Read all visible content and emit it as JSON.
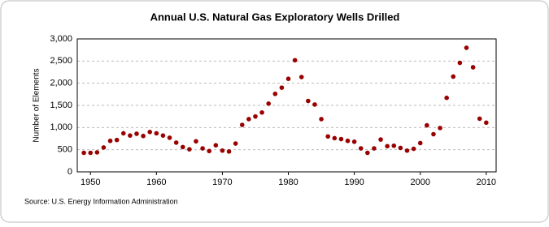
{
  "chart_data": {
    "type": "scatter",
    "title": "Annual U.S. Natural Gas Exploratory Wells Drilled",
    "y_label": "Number of Elements",
    "source": "Source: U.S. Energy Information Administration",
    "series": [
      {
        "name": "Exploratory Wells Drilled",
        "color": "#990000",
        "x": [
          1949,
          1950,
          1951,
          1952,
          1953,
          1954,
          1955,
          1956,
          1957,
          1958,
          1959,
          1960,
          1961,
          1962,
          1963,
          1964,
          1965,
          1966,
          1967,
          1968,
          1969,
          1970,
          1971,
          1972,
          1973,
          1974,
          1975,
          1976,
          1977,
          1978,
          1979,
          1980,
          1981,
          1982,
          1983,
          1984,
          1985,
          1986,
          1987,
          1988,
          1989,
          1990,
          1991,
          1992,
          1993,
          1994,
          1995,
          1996,
          1997,
          1998,
          1999,
          2000,
          2001,
          2002,
          2003,
          2004,
          2005,
          2006,
          2007,
          2008,
          2009,
          2010
        ],
        "values": [
          430,
          430,
          440,
          550,
          700,
          720,
          870,
          820,
          860,
          810,
          900,
          870,
          820,
          770,
          660,
          560,
          510,
          690,
          530,
          470,
          600,
          480,
          460,
          640,
          1060,
          1190,
          1250,
          1340,
          1540,
          1760,
          1900,
          2100,
          2520,
          2140,
          1600,
          1520,
          1190,
          800,
          760,
          740,
          700,
          680,
          530,
          430,
          530,
          730,
          580,
          590,
          540,
          480,
          520,
          650,
          1050,
          850,
          990,
          1670,
          2150,
          2460,
          2800,
          2360,
          1200,
          1110
        ]
      }
    ],
    "xlim": [
      1948,
      2011.5
    ],
    "xticks": [
      1950,
      1960,
      1970,
      1980,
      1990,
      2000,
      2010
    ],
    "ylim": [
      0,
      3000
    ],
    "yticks": [
      0,
      500,
      {
        "value": 1000,
        "label": "1,000"
      },
      {
        "value": 1500,
        "label": "1,500"
      },
      {
        "value": 2000,
        "label": "2,000"
      },
      {
        "value": 2500,
        "label": "2,500"
      },
      {
        "value": 3000,
        "label": "3,000"
      }
    ],
    "grid": true
  }
}
